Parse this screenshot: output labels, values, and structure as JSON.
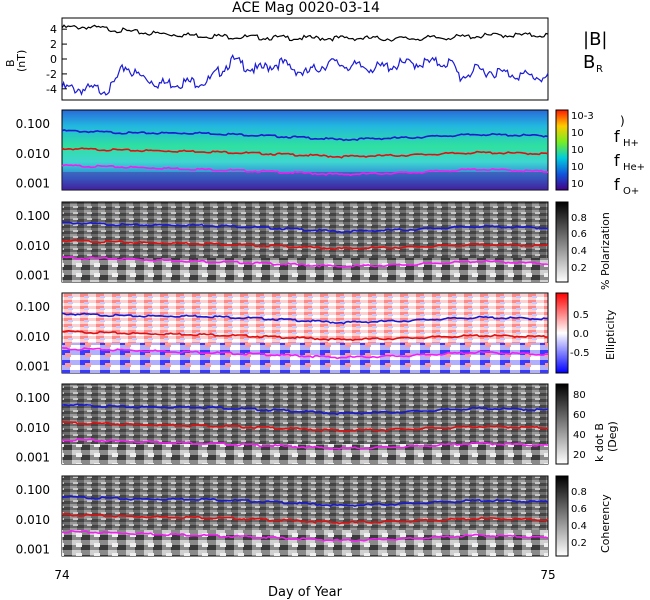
{
  "title": "ACE Mag 0020-03-14",
  "xlabel": "Day of Year",
  "x_ticks": [
    "74",
    "75"
  ],
  "labels": {
    "bmag": "|B|",
    "br": "B",
    "br_sub": "R",
    "fh": "f",
    "fh_sub": "H+",
    "fhe": "f",
    "fhe_sub": "He+",
    "fo": "f",
    "fo_sub": "O+",
    "paren": ")"
  },
  "colors": {
    "bmag": "#000000",
    "br": "#1b1bd6",
    "fh": "#1a1ad0",
    "fhe": "#e01010",
    "fo": "#f020f0"
  },
  "chart_data": [
    {
      "type": "line",
      "panel": "B",
      "ylabel": "B",
      "yunit": "(nT)",
      "yticks": [
        "4",
        "2",
        "0",
        "-2",
        "-4"
      ],
      "ylim": [
        -5.5,
        5.5
      ],
      "xlim": [
        74,
        75
      ],
      "series": [
        {
          "name": "|B|",
          "x": [
            74.0,
            74.05,
            74.1,
            74.15,
            74.2,
            74.3,
            74.4,
            74.5,
            74.6,
            74.7,
            74.8,
            74.9,
            75.0
          ],
          "values": [
            4.2,
            4.3,
            4.0,
            3.6,
            3.4,
            3.1,
            2.9,
            2.8,
            2.8,
            2.7,
            2.9,
            3.2,
            3.2
          ]
        },
        {
          "name": "B_R",
          "x": [
            74.0,
            74.05,
            74.1,
            74.13,
            74.15,
            74.2,
            74.3,
            74.35,
            74.4,
            74.45,
            74.5,
            74.55,
            74.6,
            74.65,
            74.7,
            74.75,
            74.8,
            74.82,
            74.85,
            74.9,
            74.95,
            75.0
          ],
          "values": [
            -3.9,
            -4.1,
            -4.0,
            -0.9,
            -2.0,
            -3.3,
            -3.0,
            -0.2,
            -1.5,
            -0.5,
            -2.0,
            -0.5,
            -1.0,
            -1.2,
            -0.7,
            -0.5,
            -0.5,
            -2.5,
            -1.5,
            -1.8,
            -2.2,
            -2.6
          ]
        }
      ]
    },
    {
      "type": "heatmap",
      "panel": "power",
      "yticks": [
        "0.100",
        "0.010",
        "0.001"
      ],
      "colorbar_ticks": [
        "10-3",
        "10",
        "10",
        "10",
        "10"
      ],
      "colorbar_colors": [
        "#ff2200",
        "#ffcc00",
        "#77ee22",
        "#00ccdd",
        "#1155dd",
        "#5500aa"
      ],
      "series": [
        {
          "name": "fH+",
          "values": [
            0.06,
            0.05,
            0.05,
            0.04,
            0.03,
            0.035,
            0.045,
            0.04
          ]
        },
        {
          "name": "fHe+",
          "values": [
            0.015,
            0.013,
            0.012,
            0.01,
            0.008,
            0.009,
            0.011,
            0.01
          ]
        },
        {
          "name": "fO+",
          "values": [
            0.004,
            0.0035,
            0.003,
            0.0025,
            0.002,
            0.0023,
            0.003,
            0.0025
          ]
        }
      ]
    },
    {
      "type": "heatmap",
      "panel": "polarization",
      "yticks": [
        "0.100",
        "0.010",
        "0.001"
      ],
      "colorbar_label": "% Polarization",
      "colorbar_ticks": [
        "0.8",
        "0.6",
        "0.4",
        "0.2"
      ]
    },
    {
      "type": "heatmap",
      "panel": "ellipticity",
      "yticks": [
        "0.100",
        "0.010",
        "0.001"
      ],
      "colorbar_label": "Ellipticity",
      "colorbar_ticks": [
        "0.5",
        "0.0",
        "-0.5"
      ]
    },
    {
      "type": "heatmap",
      "panel": "kdotb",
      "yticks": [
        "0.100",
        "0.010",
        "0.001"
      ],
      "colorbar_label": "k dot B",
      "colorbar_sublabel": "(Deg)",
      "colorbar_ticks": [
        "80",
        "60",
        "40",
        "20"
      ]
    },
    {
      "type": "heatmap",
      "panel": "coherency",
      "yticks": [
        "0.100",
        "0.010",
        "0.001"
      ],
      "colorbar_label": "Coherency",
      "colorbar_ticks": [
        "0.8",
        "0.6",
        "0.4",
        "0.2"
      ]
    }
  ]
}
